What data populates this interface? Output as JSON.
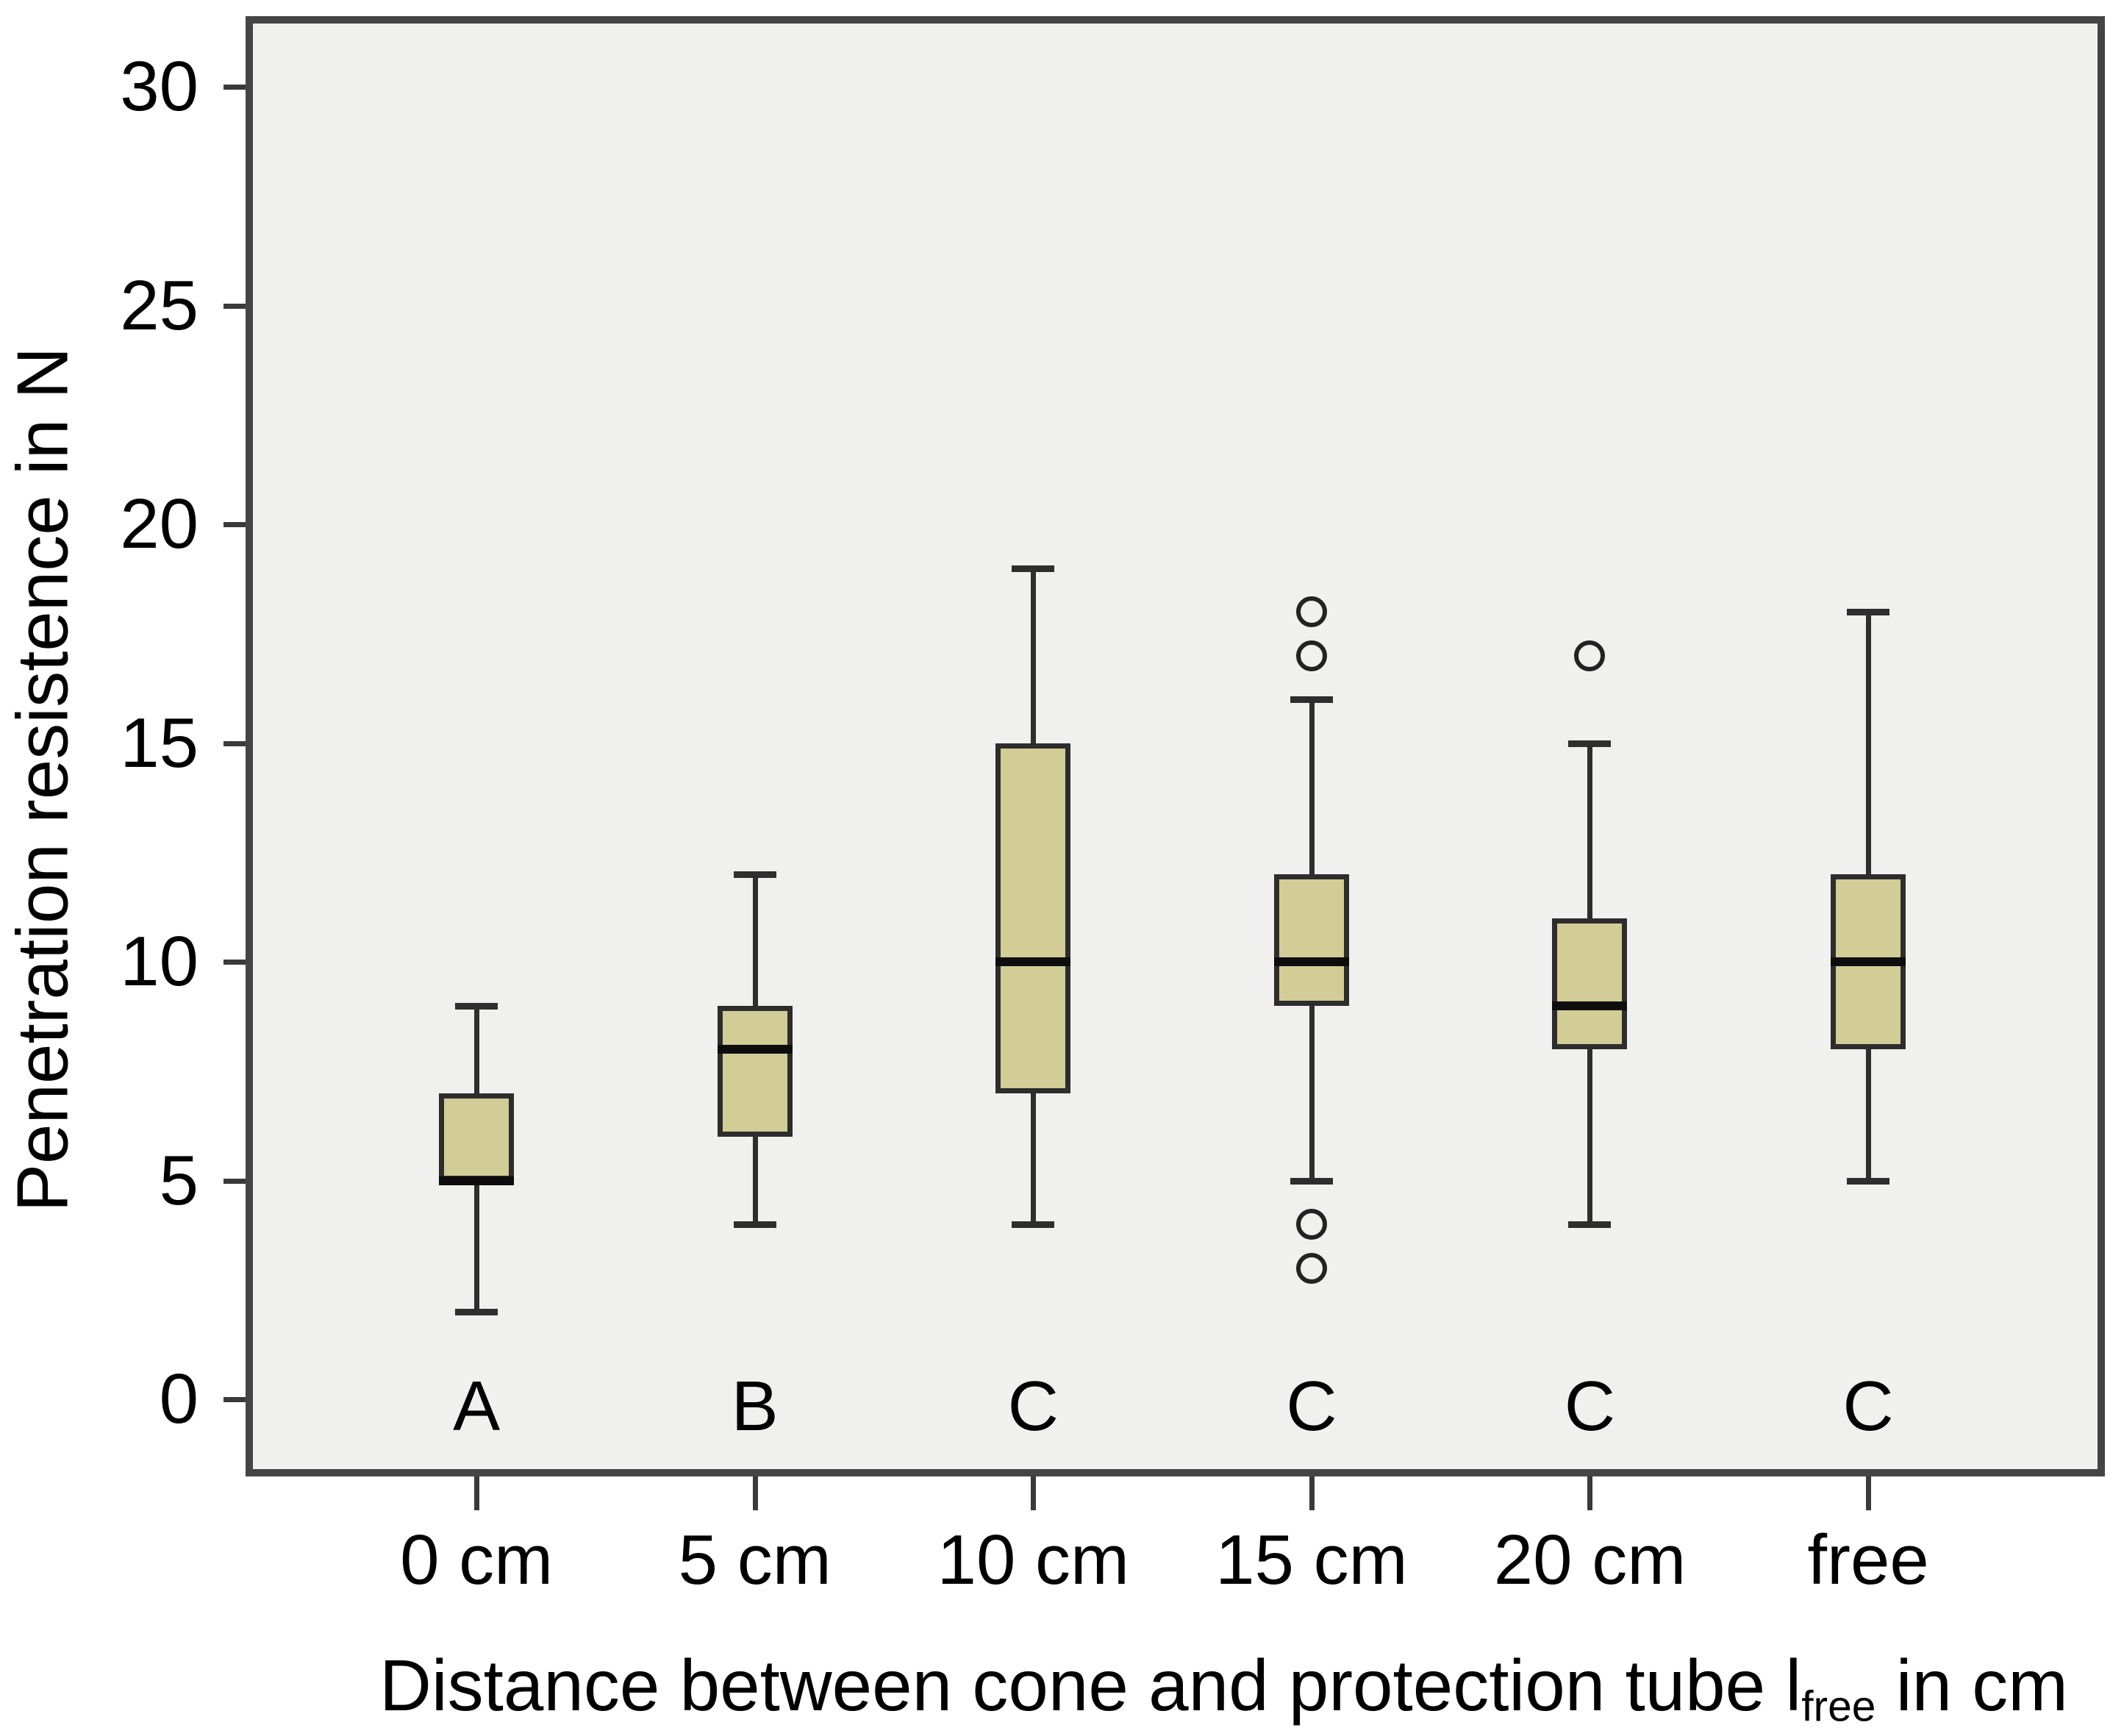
{
  "figure": {
    "y_axis": {
      "title": "Penetration resistence in N",
      "tick_labels": [
        "0",
        "5",
        "10",
        "15",
        "20",
        "25",
        "30"
      ]
    },
    "x_axis": {
      "title_prefix": "Distance between cone and protection tube l",
      "title_subscript": "free",
      "title_suffix": " in cm",
      "categories": [
        "0 cm",
        "5 cm",
        "10 cm",
        "15 cm",
        "20 cm",
        "free"
      ]
    },
    "group_letters": [
      "A",
      "B",
      "C",
      "C",
      "C",
      "C"
    ]
  },
  "chart_data": {
    "type": "box",
    "title": "",
    "xlabel": "Distance between cone and protection tube l_free in cm",
    "ylabel": "Penetration resistence in N",
    "ylim": [
      0,
      30
    ],
    "y_ticks": [
      0,
      5,
      10,
      15,
      20,
      25,
      30
    ],
    "grid": false,
    "legend": false,
    "categories": [
      "0 cm",
      "5 cm",
      "10 cm",
      "15 cm",
      "20 cm",
      "free"
    ],
    "group_labels": [
      "A",
      "B",
      "C",
      "C",
      "C",
      "C"
    ],
    "series": [
      {
        "category": "0 cm",
        "letter": "A",
        "whisker_low": 2,
        "q1": 5,
        "median": 5,
        "q3": 7,
        "whisker_high": 9,
        "outliers": []
      },
      {
        "category": "5 cm",
        "letter": "B",
        "whisker_low": 4,
        "q1": 6,
        "median": 8,
        "q3": 9,
        "whisker_high": 12,
        "outliers": []
      },
      {
        "category": "10 cm",
        "letter": "C",
        "whisker_low": 4,
        "q1": 7,
        "median": 10,
        "q3": 15,
        "whisker_high": 19,
        "outliers": []
      },
      {
        "category": "15 cm",
        "letter": "C",
        "whisker_low": 5,
        "q1": 9,
        "median": 10,
        "q3": 12,
        "whisker_high": 16,
        "outliers": [
          18,
          17,
          4,
          3
        ]
      },
      {
        "category": "20 cm",
        "letter": "C",
        "whisker_low": 4,
        "q1": 8,
        "median": 9,
        "q3": 11,
        "whisker_high": 15,
        "outliers": [
          17
        ]
      },
      {
        "category": "free",
        "letter": "C",
        "whisker_low": 5,
        "q1": 8,
        "median": 10,
        "q3": 12,
        "whisker_high": 18,
        "outliers": []
      }
    ],
    "colors": {
      "box_fill": "#d2cc96",
      "box_border": "#2d2d2d",
      "median": "#0d0d0d",
      "whisker": "#2e2e2e",
      "outlier_stroke": "#222222",
      "plot_background": "#f0f0ef",
      "frame_border": "#454545",
      "tick": "#3a3a3a",
      "text": "#000000"
    }
  }
}
